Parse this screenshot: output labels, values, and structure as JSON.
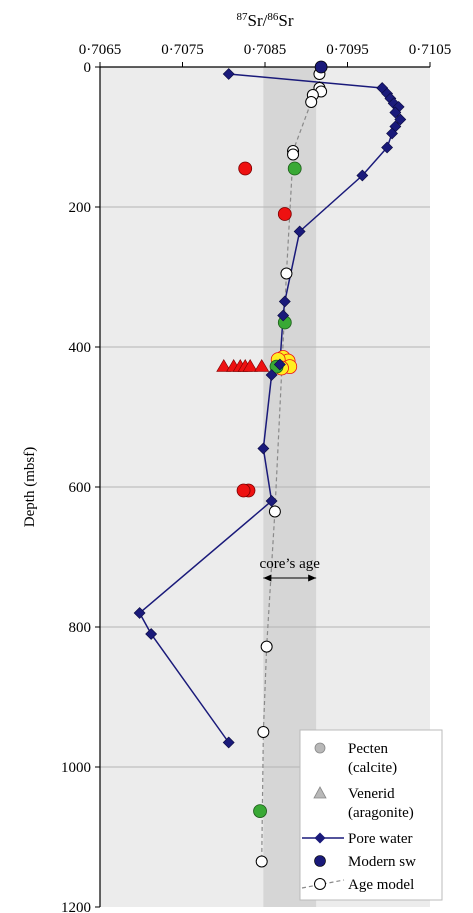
{
  "chart_data": {
    "type": "scatter",
    "title": "",
    "x_axis": {
      "label_prefix_sup": "87",
      "label_middle": "Sr/",
      "label_suffix_sup": "86",
      "label_end": "Sr",
      "position": "top",
      "range": [
        0.7065,
        0.7105
      ],
      "ticks": [
        0.7065,
        0.7075,
        0.7085,
        0.7095,
        0.7105
      ],
      "tick_labels": [
        "0·7065",
        "0·7075",
        "0·7085",
        "0·7095",
        "0·7105"
      ]
    },
    "y_axis": {
      "label": "Depth (mbsf)",
      "range": [
        0,
        1200
      ],
      "inverted": true,
      "ticks": [
        0,
        200,
        400,
        600,
        800,
        1000,
        1200
      ],
      "tick_labels": [
        "0",
        "200",
        "400",
        "600",
        "800",
        "1000",
        "1200"
      ]
    },
    "grid": {
      "horizontal": true,
      "vertical": false
    },
    "background_color": "#ececec",
    "band": {
      "x_min": 0.70848,
      "x_max": 0.70912,
      "color": "#d6d6d6"
    },
    "annotation": {
      "text": "core’s age",
      "arrow_x_min": 0.70848,
      "arrow_x_max": 0.70912,
      "depth": 730
    },
    "series": [
      {
        "name": "Pore water",
        "kind": "line-diamond",
        "color": "#1a1a7a",
        "points": [
          [
            0.70806,
            10
          ],
          [
            0.70992,
            30
          ],
          [
            0.70998,
            38
          ],
          [
            0.71002,
            45
          ],
          [
            0.71006,
            52
          ],
          [
            0.71012,
            57
          ],
          [
            0.71008,
            65
          ],
          [
            0.71014,
            75
          ],
          [
            0.71008,
            85
          ],
          [
            0.71004,
            95
          ],
          [
            0.70998,
            115
          ],
          [
            0.70968,
            155
          ],
          [
            0.70892,
            235
          ],
          [
            0.70874,
            335
          ],
          [
            0.70872,
            355
          ],
          [
            0.70868,
            425
          ],
          [
            0.70858,
            440
          ],
          [
            0.70848,
            545
          ],
          [
            0.70858,
            620
          ],
          [
            0.70698,
            780
          ],
          [
            0.70712,
            810
          ],
          [
            0.70806,
            965
          ]
        ]
      },
      {
        "name": "Age model",
        "kind": "dashed-open-circle",
        "color": "#8a8a8a",
        "points": [
          [
            0.70916,
            10
          ],
          [
            0.70916,
            30
          ],
          [
            0.70918,
            35
          ],
          [
            0.70908,
            40
          ],
          [
            0.70906,
            50
          ],
          [
            0.70884,
            120
          ],
          [
            0.70884,
            125
          ],
          [
            0.70876,
            295
          ],
          [
            0.70862,
            635
          ],
          [
            0.70852,
            828
          ],
          [
            0.70848,
            950
          ],
          [
            0.70846,
            1135
          ]
        ]
      },
      {
        "name": "Modern sw",
        "kind": "filled-circle",
        "color": "#1a1a7a",
        "points": [
          [
            0.70918,
            0
          ]
        ]
      }
    ],
    "extra_points": {
      "green": {
        "color": "#39a935",
        "points": [
          [
            0.70886,
            145
          ],
          [
            0.70874,
            365
          ],
          [
            0.70864,
            428
          ],
          [
            0.70844,
            1063
          ]
        ]
      },
      "red_circles": {
        "color": "#ee1111",
        "points": [
          [
            0.70826,
            145
          ],
          [
            0.70874,
            210
          ],
          [
            0.7083,
            605
          ],
          [
            0.70824,
            605
          ]
        ]
      },
      "red_triangles": {
        "color": "#ee1111",
        "points": [
          [
            0.708,
            428
          ],
          [
            0.70812,
            428
          ],
          [
            0.7082,
            428
          ],
          [
            0.70826,
            428
          ],
          [
            0.70832,
            428
          ],
          [
            0.70846,
            428
          ]
        ]
      },
      "yellow_circles": {
        "color": "#ffee22",
        "stroke": "#ee1111",
        "points": [
          [
            0.70872,
            415
          ],
          [
            0.70878,
            420
          ],
          [
            0.7088,
            428
          ],
          [
            0.70866,
            418
          ],
          [
            0.7087,
            430
          ]
        ]
      }
    },
    "legend": {
      "placement": "bottom-right",
      "entries": [
        {
          "symbol": "pecten",
          "label": [
            "Pecten",
            "(calcite)"
          ]
        },
        {
          "symbol": "venerid",
          "label": [
            "Venerid",
            "(aragonite)"
          ]
        },
        {
          "symbol": "pore-water",
          "label": [
            "Pore water"
          ]
        },
        {
          "symbol": "modern-sw",
          "label": [
            "Modern sw"
          ]
        },
        {
          "symbol": "age-model",
          "label": [
            "Age model"
          ]
        }
      ]
    }
  }
}
